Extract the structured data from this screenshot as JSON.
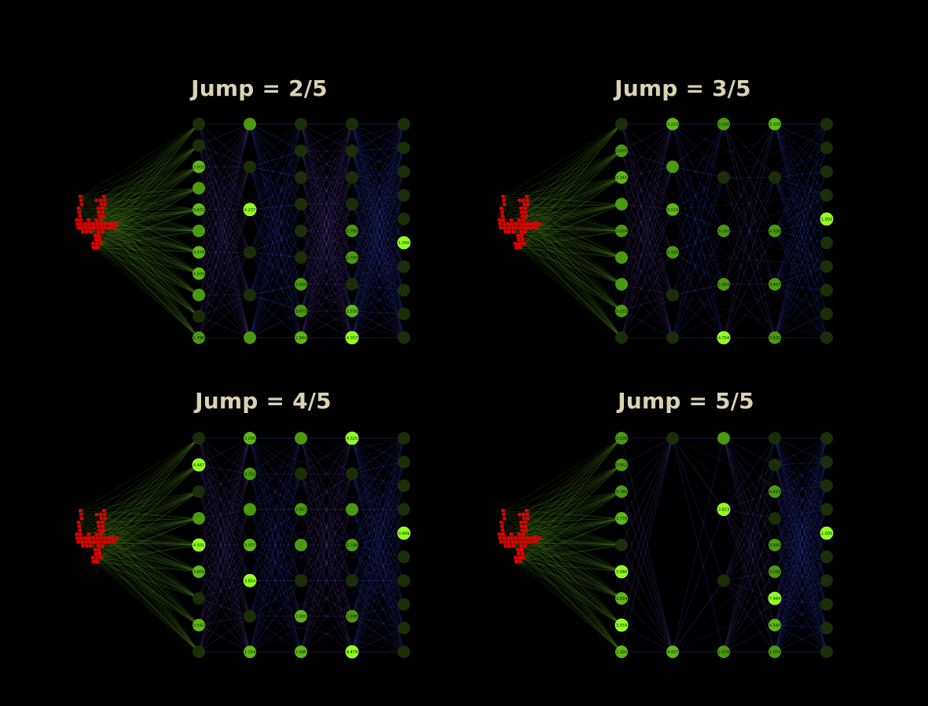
{
  "colors": {
    "background": "#000000",
    "title": "#d9d2b4",
    "digit": "#e00000",
    "node_active": "#8cff1a",
    "node_mid": "#4a9a10",
    "node_dim": "#1a2f08",
    "edge_input": "#4c8a1c",
    "edge_hidden": "#5a3cb0",
    "edge_blue": "#2f3fd0"
  },
  "panels": [
    {
      "title": "Jump = 2/5",
      "layers": [
        {
          "nodes": [
            [
              0,
              ""
            ],
            [
              0,
              ""
            ],
            [
              2,
              "3.809"
            ],
            [
              1,
              ""
            ],
            [
              2,
              "3.472"
            ],
            [
              1,
              ""
            ],
            [
              2,
              "3.976"
            ],
            [
              2,
              "4.609"
            ],
            [
              1,
              ""
            ],
            [
              0,
              ""
            ],
            [
              1,
              "1.796"
            ]
          ]
        },
        {
          "nodes": [
            [
              1,
              ""
            ],
            [
              0,
              ""
            ],
            [
              3,
              "4.237"
            ],
            [
              0,
              ""
            ],
            [
              0,
              ""
            ],
            [
              1,
              ""
            ]
          ]
        },
        {
          "nodes": [
            [
              0,
              ""
            ],
            [
              0,
              ""
            ],
            [
              0,
              ""
            ],
            [
              0,
              ""
            ],
            [
              0,
              ""
            ],
            [
              0,
              ""
            ],
            [
              1,
              "3.609"
            ],
            [
              1,
              "3.073"
            ],
            [
              2,
              "2.844"
            ]
          ]
        },
        {
          "nodes": [
            [
              0,
              ""
            ],
            [
              0,
              ""
            ],
            [
              0,
              ""
            ],
            [
              0,
              ""
            ],
            [
              1,
              "2.780"
            ],
            [
              1,
              "2.760"
            ],
            [
              0,
              ""
            ],
            [
              2,
              "2.830"
            ],
            [
              3,
              "4.307"
            ]
          ]
        },
        {
          "nodes": [
            [
              0,
              ""
            ],
            [
              0,
              ""
            ],
            [
              0,
              ""
            ],
            [
              0,
              ""
            ],
            [
              0,
              ""
            ],
            [
              3,
              "1.000"
            ],
            [
              0,
              ""
            ],
            [
              0,
              ""
            ],
            [
              0,
              ""
            ],
            [
              0,
              ""
            ]
          ]
        }
      ]
    },
    {
      "title": "Jump = 3/5",
      "layers": [
        {
          "nodes": [
            [
              0,
              ""
            ],
            [
              1,
              "3.037"
            ],
            [
              2,
              "3.241"
            ],
            [
              1,
              ""
            ],
            [
              1,
              "3.024"
            ],
            [
              1,
              ""
            ],
            [
              1,
              ""
            ],
            [
              1,
              "3.222"
            ],
            [
              0,
              ""
            ]
          ]
        },
        {
          "nodes": [
            [
              2,
              "3.223"
            ],
            [
              1,
              ""
            ],
            [
              2,
              "3.029"
            ],
            [
              1,
              "1.320"
            ],
            [
              0,
              ""
            ],
            [
              0,
              ""
            ]
          ]
        },
        {
          "nodes": [
            [
              1,
              "3.102"
            ],
            [
              0,
              ""
            ],
            [
              1,
              "3.192"
            ],
            [
              1,
              "3.889"
            ],
            [
              3,
              "4.754"
            ]
          ]
        },
        {
          "nodes": [
            [
              2,
              "3.203"
            ],
            [
              0,
              ""
            ],
            [
              1,
              "4.938"
            ],
            [
              1,
              "3.487"
            ],
            [
              1,
              "3.831"
            ]
          ]
        },
        {
          "nodes": [
            [
              0,
              ""
            ],
            [
              0,
              ""
            ],
            [
              0,
              ""
            ],
            [
              0,
              ""
            ],
            [
              3,
              "1.000"
            ],
            [
              0,
              ""
            ],
            [
              0,
              ""
            ],
            [
              0,
              ""
            ],
            [
              0,
              ""
            ],
            [
              0,
              ""
            ]
          ]
        }
      ]
    },
    {
      "title": "Jump = 4/5",
      "layers": [
        {
          "nodes": [
            [
              0,
              ""
            ],
            [
              3,
              "4.487"
            ],
            [
              0,
              ""
            ],
            [
              1,
              ""
            ],
            [
              3,
              "4.501"
            ],
            [
              2,
              "3.859"
            ],
            [
              0,
              ""
            ],
            [
              2,
              "3.542"
            ],
            [
              0,
              ""
            ]
          ]
        },
        {
          "nodes": [
            [
              2,
              "3.290"
            ],
            [
              1,
              "3.753"
            ],
            [
              1,
              ""
            ],
            [
              2,
              "3.377"
            ],
            [
              3,
              "3.854"
            ],
            [
              0,
              ""
            ],
            [
              2,
              "1.254"
            ]
          ]
        },
        {
          "nodes": [
            [
              1,
              ""
            ],
            [
              0,
              ""
            ],
            [
              1,
              "2.603"
            ],
            [
              1,
              ""
            ],
            [
              0,
              ""
            ],
            [
              2,
              "3.880"
            ],
            [
              2,
              "2.895"
            ]
          ]
        },
        {
          "nodes": [
            [
              3,
              "4.325"
            ],
            [
              0,
              ""
            ],
            [
              1,
              ""
            ],
            [
              1,
              "2.768"
            ],
            [
              0,
              ""
            ],
            [
              1,
              "2.888"
            ],
            [
              3,
              "4.479"
            ]
          ]
        },
        {
          "nodes": [
            [
              0,
              ""
            ],
            [
              0,
              ""
            ],
            [
              0,
              ""
            ],
            [
              0,
              ""
            ],
            [
              3,
              "0.999"
            ],
            [
              0,
              ""
            ],
            [
              0,
              ""
            ],
            [
              0,
              ""
            ],
            [
              0,
              ""
            ],
            [
              0,
              ""
            ]
          ]
        }
      ]
    },
    {
      "title": "Jump = 5/5",
      "layers": [
        {
          "nodes": [
            [
              1,
              "3.038"
            ],
            [
              1,
              "3.052"
            ],
            [
              1,
              "3.789"
            ],
            [
              2,
              "3.778"
            ],
            [
              0,
              ""
            ],
            [
              3,
              "3.580"
            ],
            [
              2,
              "3.854"
            ],
            [
              3,
              "3.559"
            ],
            [
              2,
              "2.290"
            ]
          ]
        },
        {
          "nodes": [
            [
              0,
              ""
            ],
            [
              2,
              "4.427"
            ]
          ]
        },
        {
          "nodes": [
            [
              1,
              ""
            ],
            [
              3,
              "3.823"
            ],
            [
              0,
              ""
            ],
            [
              1,
              "2.878"
            ]
          ]
        },
        {
          "nodes": [
            [
              0,
              ""
            ],
            [
              0,
              ""
            ],
            [
              1,
              "4.423"
            ],
            [
              0,
              ""
            ],
            [
              1,
              "3.649"
            ],
            [
              1,
              "3.038"
            ],
            [
              3,
              "7.484"
            ],
            [
              2,
              "4.540"
            ],
            [
              1,
              "1.003"
            ]
          ]
        },
        {
          "nodes": [
            [
              0,
              ""
            ],
            [
              0,
              ""
            ],
            [
              0,
              ""
            ],
            [
              0,
              ""
            ],
            [
              3,
              "1.000"
            ],
            [
              0,
              ""
            ],
            [
              0,
              ""
            ],
            [
              0,
              ""
            ],
            [
              0,
              ""
            ],
            [
              0,
              ""
            ]
          ]
        }
      ]
    }
  ]
}
